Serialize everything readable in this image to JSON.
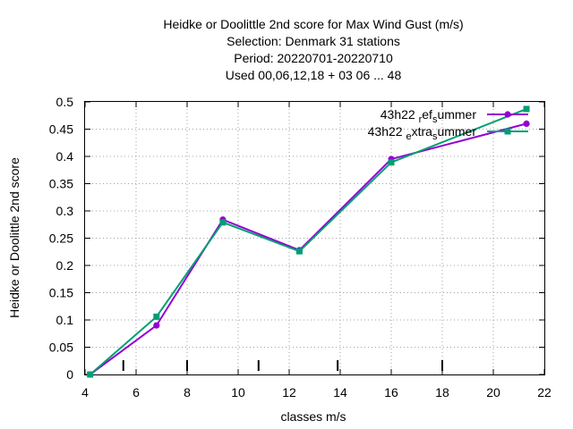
{
  "chart_data": {
    "type": "line",
    "title_lines": [
      "Heidke or Doolittle 2nd score  for Max Wind Gust (m/s)",
      "Selection: Denmark     31 stations",
      "Period: 20220701-20220710",
      "Used  00,06,12,18  + 03 06 ... 48"
    ],
    "xlabel": "classes m/s",
    "ylabel": "Heidke or Doolittle 2nd score",
    "xlim": [
      4,
      22
    ],
    "ylim": [
      0,
      0.5
    ],
    "xticks": [
      4,
      6,
      8,
      10,
      12,
      14,
      16,
      18,
      20,
      22
    ],
    "yticks": [
      0,
      0.05,
      0.1,
      0.15,
      0.2,
      0.25,
      0.3,
      0.35,
      0.4,
      0.45,
      0.5
    ],
    "ytick_labels": [
      "0",
      "0.05",
      "0.1",
      "0.15",
      "0.2",
      "0.25",
      "0.3",
      "0.35",
      "0.4",
      "0.45",
      "0.5"
    ],
    "class_marks": [
      5.5,
      8,
      10.8,
      13.9,
      18
    ],
    "grid": true,
    "legend_position": "top-right",
    "series": [
      {
        "legend_parts": [
          [
            "43h22 ",
            "r",
            "ef",
            "s",
            "ummer"
          ]
        ],
        "color": "#9400d3",
        "marker": "circle",
        "points": [
          [
            4.2,
            0.0
          ],
          [
            6.8,
            0.09
          ],
          [
            9.4,
            0.284
          ],
          [
            12.4,
            0.228
          ],
          [
            16.0,
            0.395
          ],
          [
            21.3,
            0.46
          ]
        ]
      },
      {
        "legend_parts": [
          [
            "43h22 ",
            "e",
            "xtra",
            "s",
            "ummer"
          ]
        ],
        "color": "#009e73",
        "marker": "square",
        "points": [
          [
            4.2,
            0.0
          ],
          [
            6.8,
            0.106
          ],
          [
            9.4,
            0.279
          ],
          [
            12.4,
            0.226
          ],
          [
            16.0,
            0.389
          ],
          [
            21.3,
            0.487
          ]
        ]
      }
    ]
  }
}
